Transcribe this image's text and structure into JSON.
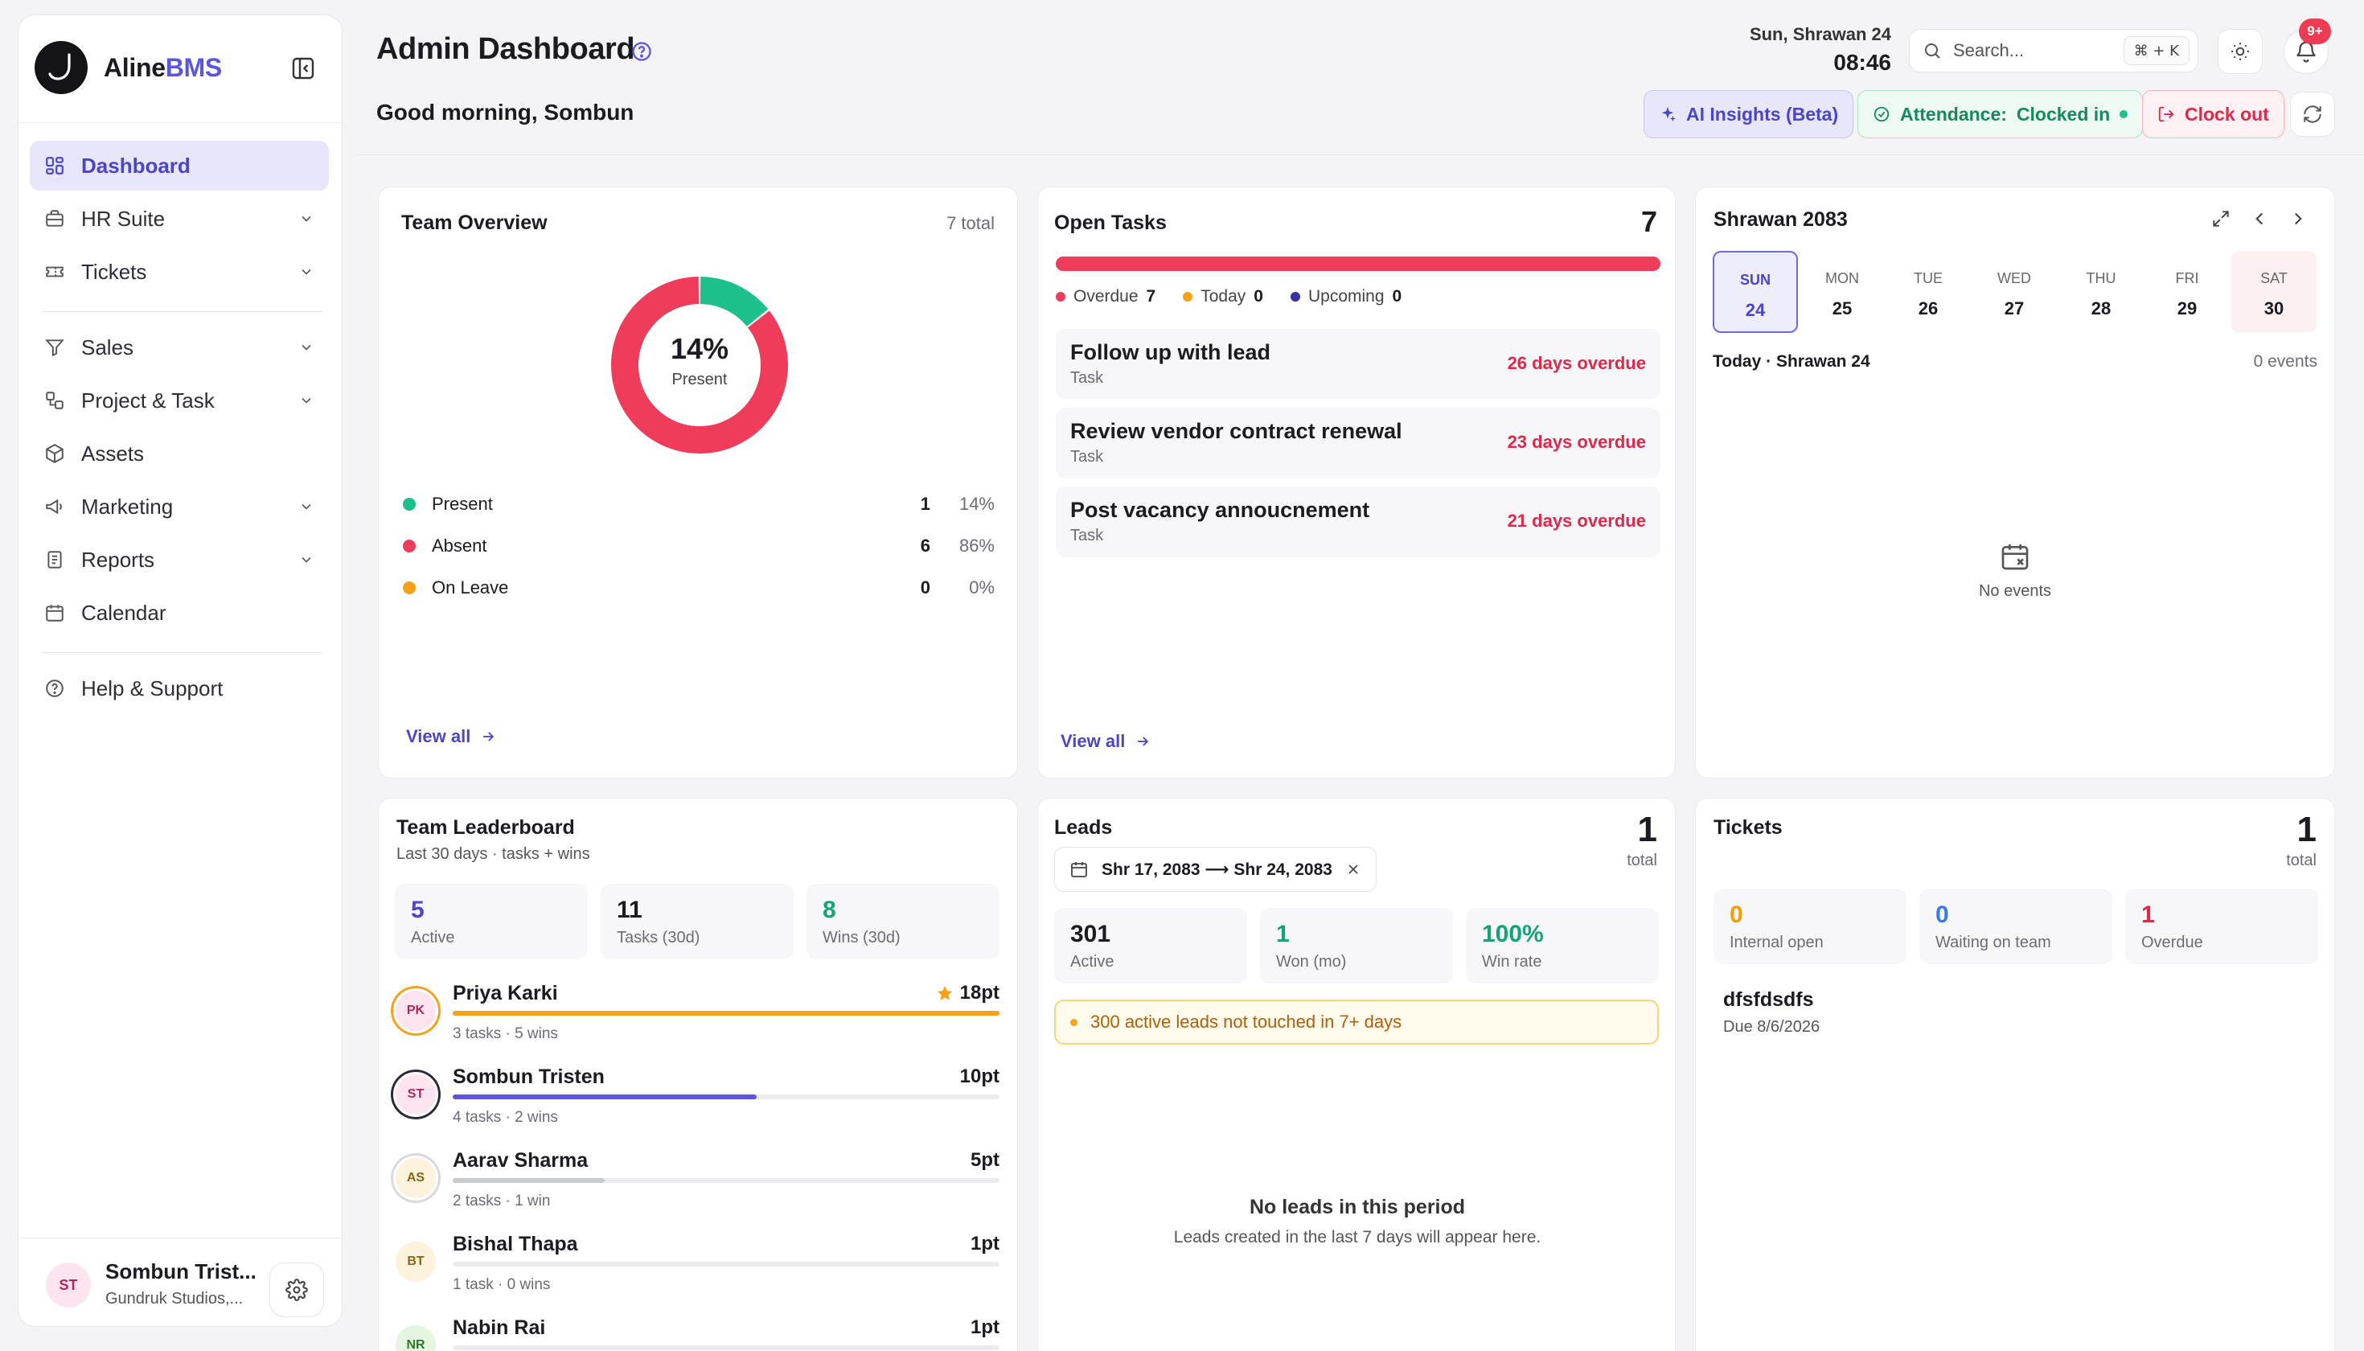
{
  "brand": {
    "prefix": "Aline",
    "suffix": "BMS"
  },
  "sidebar": {
    "items": [
      {
        "label": "Dashboard"
      },
      {
        "label": "HR Suite"
      },
      {
        "label": "Tickets"
      },
      {
        "label": "Sales"
      },
      {
        "label": "Project & Task"
      },
      {
        "label": "Assets"
      },
      {
        "label": "Marketing"
      },
      {
        "label": "Reports"
      },
      {
        "label": "Calendar"
      },
      {
        "label": "Help & Support"
      }
    ],
    "user": {
      "initials": "ST",
      "name": "Sombun Trist...",
      "org": "Gundruk Studios,..."
    }
  },
  "header": {
    "title": "Admin Dashboard",
    "greeting": "Good morning, Sombun",
    "date": "Sun, Shrawan 24",
    "time": "08:46",
    "search_placeholder": "Search...",
    "shortcut": "⌘ + K",
    "notifications": "9+",
    "ai_insights": "AI Insights (Beta)",
    "attendance_label": "Attendance:",
    "attendance_status": "Clocked in",
    "clock_out": "Clock out"
  },
  "team_overview": {
    "title": "Team Overview",
    "total": "7 total",
    "center_value": "14%",
    "center_label": "Present",
    "segments": [
      {
        "label": "Present",
        "count": "1",
        "percent": "14%",
        "value": 1,
        "color": "#1dbf8a"
      },
      {
        "label": "Absent",
        "count": "6",
        "percent": "86%",
        "value": 6,
        "color": "#f03c5b"
      },
      {
        "label": "On Leave",
        "count": "0",
        "percent": "0%",
        "value": 0,
        "color": "#f5a11a"
      }
    ],
    "view_all": "View all"
  },
  "open_tasks": {
    "title": "Open Tasks",
    "count": "7",
    "overdue_label": "Overdue",
    "overdue": "7",
    "today_label": "Today",
    "today": "0",
    "upcoming_label": "Upcoming",
    "upcoming": "0",
    "tasks": [
      {
        "title": "Follow up with lead",
        "type": "Task",
        "status": "26 days overdue"
      },
      {
        "title": "Review vendor contract renewal",
        "type": "Task",
        "status": "23 days overdue"
      },
      {
        "title": "Post vacancy annoucnement",
        "type": "Task",
        "status": "21 days overdue"
      }
    ],
    "view_all": "View all"
  },
  "calendar": {
    "title": "Shrawan 2083",
    "days": [
      {
        "name": "SUN",
        "date": "24"
      },
      {
        "name": "MON",
        "date": "25"
      },
      {
        "name": "TUE",
        "date": "26"
      },
      {
        "name": "WED",
        "date": "27"
      },
      {
        "name": "THU",
        "date": "28"
      },
      {
        "name": "FRI",
        "date": "29"
      },
      {
        "name": "SAT",
        "date": "30"
      }
    ],
    "today_label": "Today · Shrawan 24",
    "events_count": "0 events",
    "empty": "No events"
  },
  "leaderboard": {
    "title": "Team Leaderboard",
    "subtitle": "Last 30 days · tasks + wins",
    "stats": [
      {
        "value": "5",
        "label": "Active",
        "color": "#4b45c9"
      },
      {
        "value": "11",
        "label": "Tasks (30d)",
        "color": "#1b1b22"
      },
      {
        "value": "8",
        "label": "Wins (30d)",
        "color": "#12a574"
      }
    ],
    "people": [
      {
        "initials": "PK",
        "name": "Priya Karki",
        "points": "18pt",
        "details": "3 tasks · 5 wins",
        "progress": 1.0
      },
      {
        "initials": "ST",
        "name": "Sombun Tristen",
        "points": "10pt",
        "details": "4 tasks · 2 wins",
        "progress": 0.556
      },
      {
        "initials": "AS",
        "name": "Aarav Sharma",
        "points": "5pt",
        "details": "2 tasks · 1 win",
        "progress": 0.278
      },
      {
        "initials": "BT",
        "name": "Bishal Thapa",
        "points": "1pt",
        "details": "1 task · 0 wins",
        "progress": 0.0
      },
      {
        "initials": "NR",
        "name": "Nabin Rai",
        "points": "1pt",
        "details": "",
        "progress": 0.0
      }
    ]
  },
  "leads": {
    "title": "Leads",
    "total": "1",
    "total_label": "total",
    "date_range": "Shr 17, 2083 ⟶ Shr 24, 2083",
    "stats": [
      {
        "value": "301",
        "label": "Active",
        "color": "#1b1b22"
      },
      {
        "value": "1",
        "label": "Won (mo)",
        "color": "#12a574"
      },
      {
        "value": "100%",
        "label": "Win rate",
        "color": "#12a574"
      }
    ],
    "alert": "300 active leads not touched in 7+ days",
    "empty_title": "No leads in this period",
    "empty_desc": "Leads created in the last 7 days will appear here."
  },
  "tickets": {
    "title": "Tickets",
    "total": "1",
    "total_label": "total",
    "stats": [
      {
        "value": "0",
        "label": "Internal open",
        "color": "#f59e0b"
      },
      {
        "value": "0",
        "label": "Waiting on team",
        "color": "#3b7be0"
      },
      {
        "value": "1",
        "label": "Overdue",
        "color": "#e0284a"
      }
    ],
    "item_title": "dfsfdsdfs",
    "item_due": "Due 8/6/2026"
  }
}
